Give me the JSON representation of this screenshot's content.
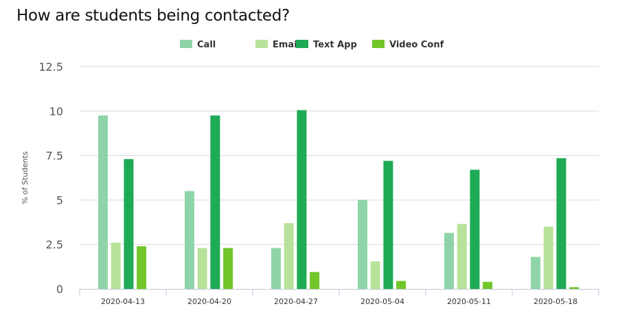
{
  "chart_data": {
    "type": "bar",
    "title": "How are students being contacted?",
    "ylabel": "% of Students",
    "xlabel": "",
    "ylim": [
      0,
      12.5
    ],
    "yticks": [
      "0",
      "2.5",
      "5",
      "7.5",
      "10",
      "12.5"
    ],
    "grid": true,
    "legend": "top",
    "categories": [
      "2020-04-13",
      "2020-04-20",
      "2020-04-27",
      "2020-05-04",
      "2020-05-11",
      "2020-05-18"
    ],
    "series": [
      {
        "name": "Call",
        "color": "#8fd4a8",
        "values": [
          9.75,
          5.5,
          2.3,
          5.0,
          3.15,
          1.8
        ]
      },
      {
        "name": "Email",
        "color": "#b8e29a",
        "values": [
          2.6,
          2.3,
          3.7,
          1.55,
          3.65,
          3.5
        ]
      },
      {
        "name": "Text App",
        "color": "#1faa55",
        "values": [
          7.3,
          9.75,
          10.05,
          7.2,
          6.7,
          7.35
        ]
      },
      {
        "name": "Video Conf",
        "color": "#72c62a",
        "values": [
          2.4,
          2.3,
          0.95,
          0.45,
          0.4,
          0.1
        ]
      }
    ]
  }
}
